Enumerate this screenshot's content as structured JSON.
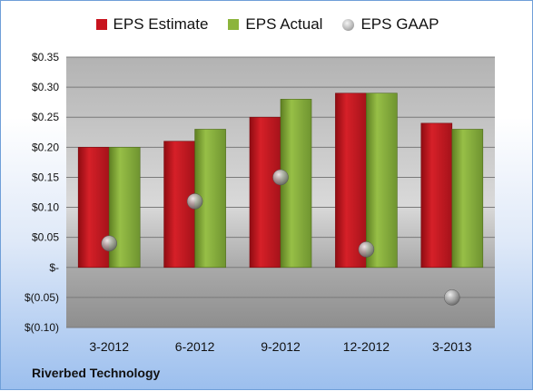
{
  "company": "Riverbed Technology",
  "chart_data": {
    "type": "bar",
    "categories": [
      "3-2012",
      "6-2012",
      "9-2012",
      "12-2012",
      "3-2013"
    ],
    "series": [
      {
        "name": "EPS Estimate",
        "type": "bar",
        "color": "#c8141e",
        "values": [
          0.2,
          0.21,
          0.25,
          0.29,
          0.24
        ]
      },
      {
        "name": "EPS Actual",
        "type": "bar",
        "color": "#8cb43c",
        "values": [
          0.2,
          0.23,
          0.28,
          0.29,
          0.23
        ]
      },
      {
        "name": "EPS GAAP",
        "type": "scatter",
        "color": "#a8a8a8",
        "values": [
          0.04,
          0.11,
          0.15,
          0.03,
          -0.05
        ]
      }
    ],
    "ylim": [
      -0.1,
      0.35
    ],
    "y_ticks": [
      0.35,
      0.3,
      0.25,
      0.2,
      0.15,
      0.1,
      0.05,
      0,
      -0.05,
      -0.1
    ],
    "y_tick_labels": [
      "$0.35",
      "$0.30",
      "$0.25",
      "$0.20",
      "$0.15",
      "$0.10",
      "$0.05",
      "$-",
      "$(0.05)",
      "$(0.10)"
    ],
    "grid": true,
    "legend_position": "top"
  }
}
